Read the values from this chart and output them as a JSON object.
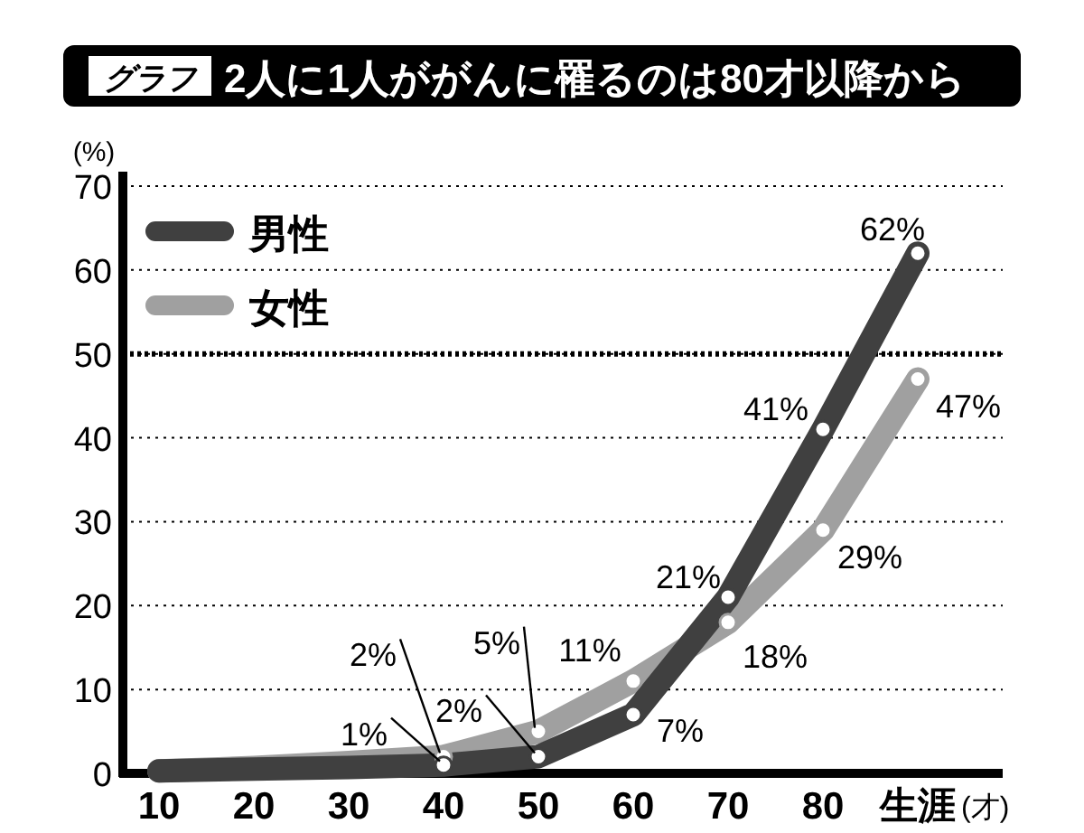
{
  "chart_data": {
    "type": "line",
    "title": "2人に1人ががんに罹るのは80才以降から",
    "annotations": [
      "グラフ"
    ],
    "ylabel": "(%)",
    "xlabel": "(才)",
    "categories": [
      "10",
      "20",
      "30",
      "40",
      "50",
      "60",
      "70",
      "80",
      "生涯"
    ],
    "series": [
      {
        "name": "男性",
        "color": "#404040",
        "values": [
          0.3,
          0.5,
          0.7,
          1,
          2,
          7,
          21,
          41,
          62
        ],
        "value_labels": [
          null,
          null,
          null,
          "1%",
          "2%",
          "7%",
          "21%",
          "41%",
          "62%"
        ]
      },
      {
        "name": "女性",
        "color": "#a0a0a0",
        "values": [
          0.3,
          0.7,
          1.3,
          2,
          5,
          11,
          18,
          29,
          47
        ],
        "value_labels": [
          null,
          null,
          null,
          "2%",
          "5%",
          "11%",
          "18%",
          "29%",
          "47%"
        ]
      }
    ],
    "ylim": [
      0,
      70
    ],
    "yticks": [
      0,
      10,
      20,
      30,
      40,
      50,
      60,
      70
    ],
    "grid": "y",
    "legend": "top left",
    "marker": "circle",
    "line_style": "solid",
    "ref_lines": [
      {
        "axis": "y",
        "value": 50
      }
    ]
  }
}
